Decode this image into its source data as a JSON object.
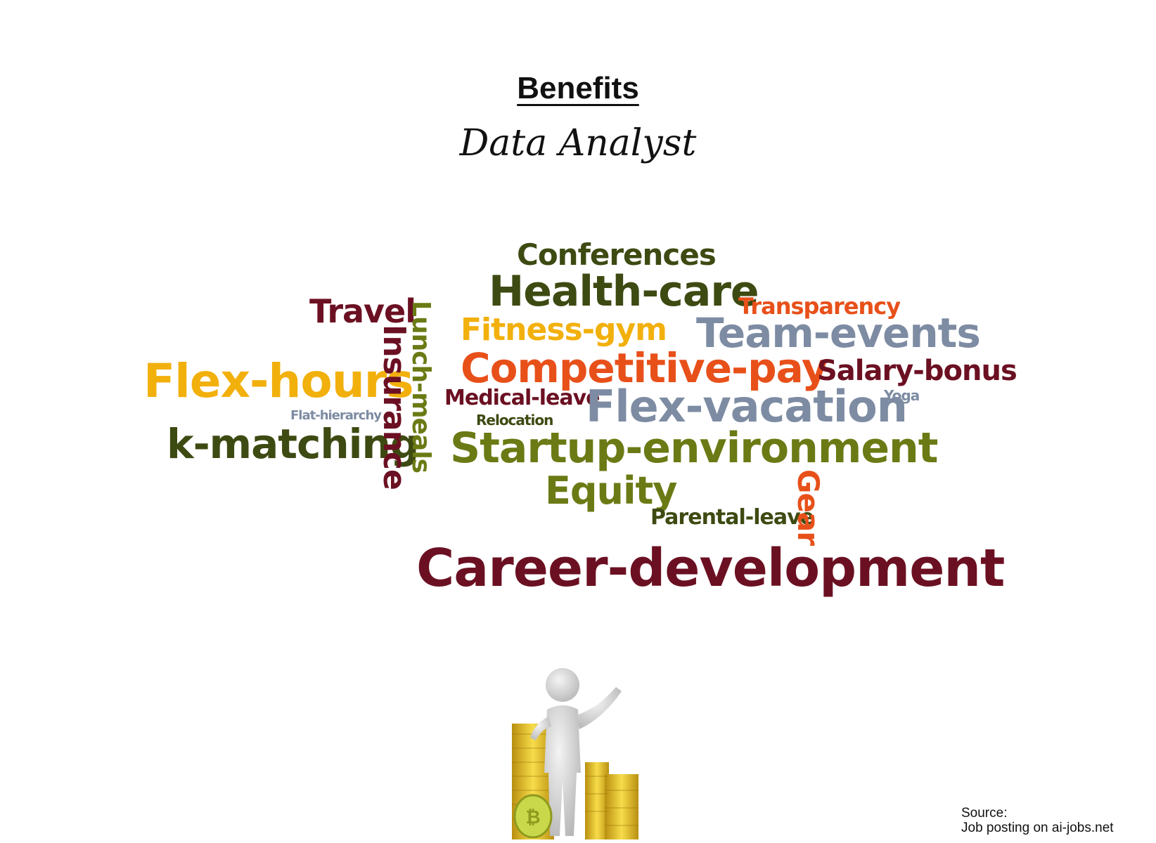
{
  "header": {
    "title": "Benefits",
    "subtitle": "Data Analyst"
  },
  "word_cloud": {
    "palette": {
      "dark_green": "#3d4a12",
      "olive": "#6b7a14",
      "maroon": "#6b1022",
      "orange": "#e8501a",
      "yellow": "#f2b00c",
      "slate": "#7d8ca3"
    },
    "words": [
      {
        "id": "conferences",
        "text": "Conferences",
        "color": "#3d4a12"
      },
      {
        "id": "health-care",
        "text": "Health-care",
        "color": "#3d4a12"
      },
      {
        "id": "travel",
        "text": "Travel",
        "color": "#6b1022"
      },
      {
        "id": "transparency",
        "text": "Transparency",
        "color": "#e8501a"
      },
      {
        "id": "fitness-gym",
        "text": "Fitness-gym",
        "color": "#f2b00c"
      },
      {
        "id": "team-events",
        "text": "Team-events",
        "color": "#7d8ca3"
      },
      {
        "id": "insurance",
        "text": "Insurance",
        "color": "#6b1022"
      },
      {
        "id": "lunch-meals",
        "text": "Lunch-meals",
        "color": "#6b7a14"
      },
      {
        "id": "flex-hours",
        "text": "Flex-hours",
        "color": "#f2b00c"
      },
      {
        "id": "competitive-pay",
        "text": "Competitive-pay",
        "color": "#e8501a"
      },
      {
        "id": "salary-bonus",
        "text": "Salary-bonus",
        "color": "#6b1022"
      },
      {
        "id": "medical-leave",
        "text": "Medical-leave",
        "color": "#6b1022"
      },
      {
        "id": "flex-vacation",
        "text": "Flex-vacation",
        "color": "#7d8ca3"
      },
      {
        "id": "yoga",
        "text": "Yoga",
        "color": "#7d8ca3"
      },
      {
        "id": "flat-hierarchy",
        "text": "Flat-hierarchy",
        "color": "#7d8ca3"
      },
      {
        "id": "relocation",
        "text": "Relocation",
        "color": "#3d4a12"
      },
      {
        "id": "k-matching",
        "text": "k-matching",
        "color": "#3d4a12"
      },
      {
        "id": "startup-environment",
        "text": "Startup-environment",
        "color": "#6b7a14"
      },
      {
        "id": "equity",
        "text": "Equity",
        "color": "#6b7a14"
      },
      {
        "id": "gear",
        "text": "Gear",
        "color": "#e8501a"
      },
      {
        "id": "parental-leave",
        "text": "Parental-leave",
        "color": "#3d4a12"
      },
      {
        "id": "career-development",
        "text": "Career-development",
        "color": "#6b1022"
      }
    ]
  },
  "footer": {
    "source_label": "Source:",
    "source_text": "Job posting on ai-jobs.net"
  }
}
